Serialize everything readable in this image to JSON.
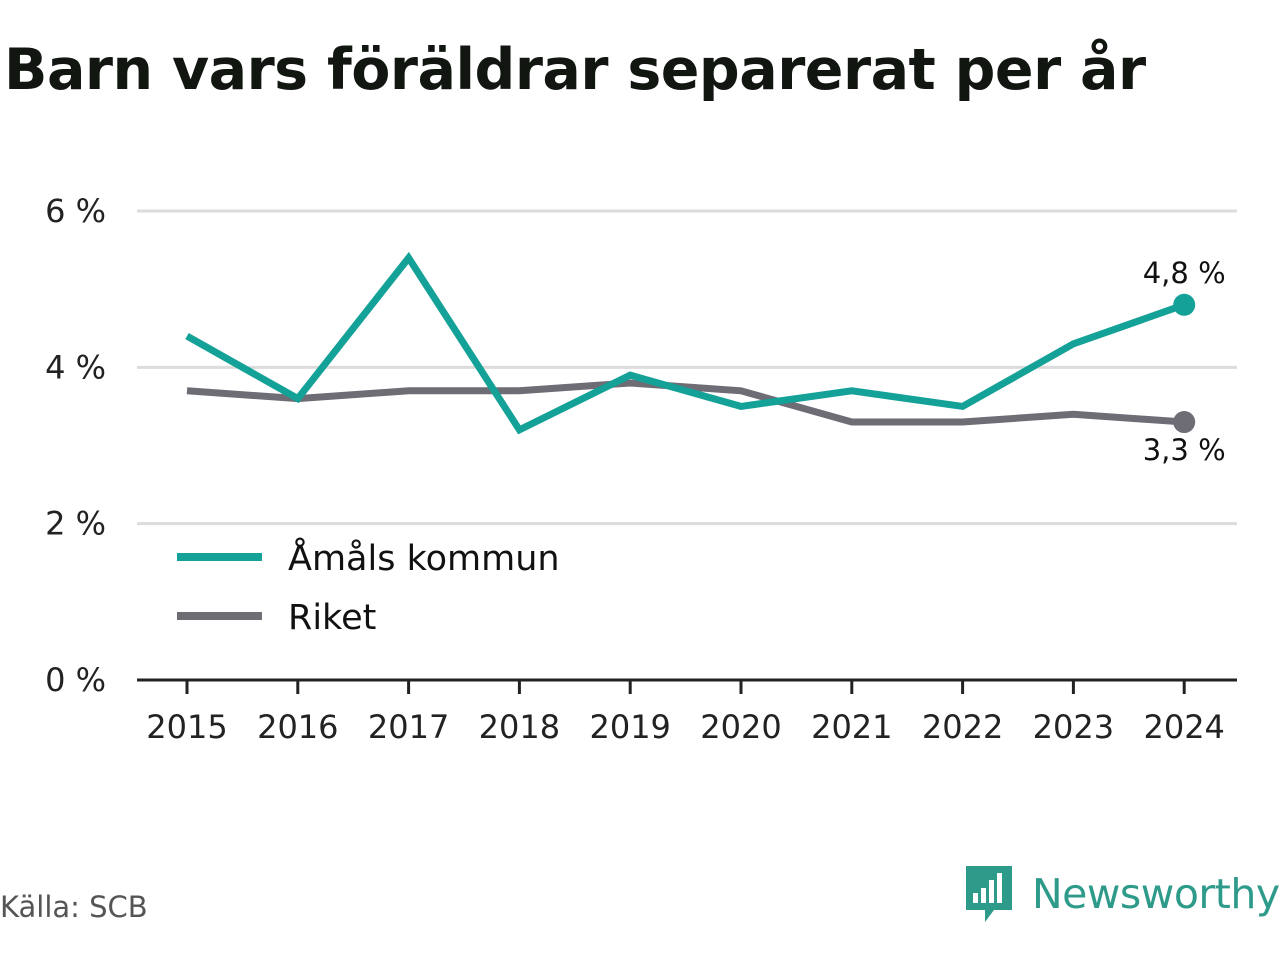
{
  "title": "Barn vars föräldrar separerat per år",
  "source": "Källa: SCB",
  "brand": {
    "name": "Newsworthy",
    "icon": "newsworthy-logo-icon"
  },
  "colors": {
    "amal": "#13a198",
    "riket": "#6e6c74",
    "grid": "#dcdcdc",
    "axis": "#222222"
  },
  "chart_data": {
    "type": "line",
    "x": [
      "2015",
      "2016",
      "2017",
      "2018",
      "2019",
      "2020",
      "2021",
      "2022",
      "2023",
      "2024"
    ],
    "y_ticks": [
      0,
      2,
      4,
      6
    ],
    "y_tick_labels": [
      "0 %",
      "2 %",
      "4 %",
      "6 %"
    ],
    "ylim": [
      0,
      6
    ],
    "grid": true,
    "legend_position": "bottom-left",
    "series": [
      {
        "name": "Åmåls kommun",
        "color": "#13a198",
        "values": [
          4.4,
          3.6,
          5.4,
          3.2,
          3.9,
          3.5,
          3.7,
          3.5,
          4.3,
          4.8
        ],
        "end_label": "4,8 %"
      },
      {
        "name": "Riket",
        "color": "#6e6c74",
        "values": [
          3.7,
          3.6,
          3.7,
          3.7,
          3.8,
          3.7,
          3.3,
          3.3,
          3.4,
          3.3
        ],
        "end_label": "3,3 %"
      }
    ]
  }
}
